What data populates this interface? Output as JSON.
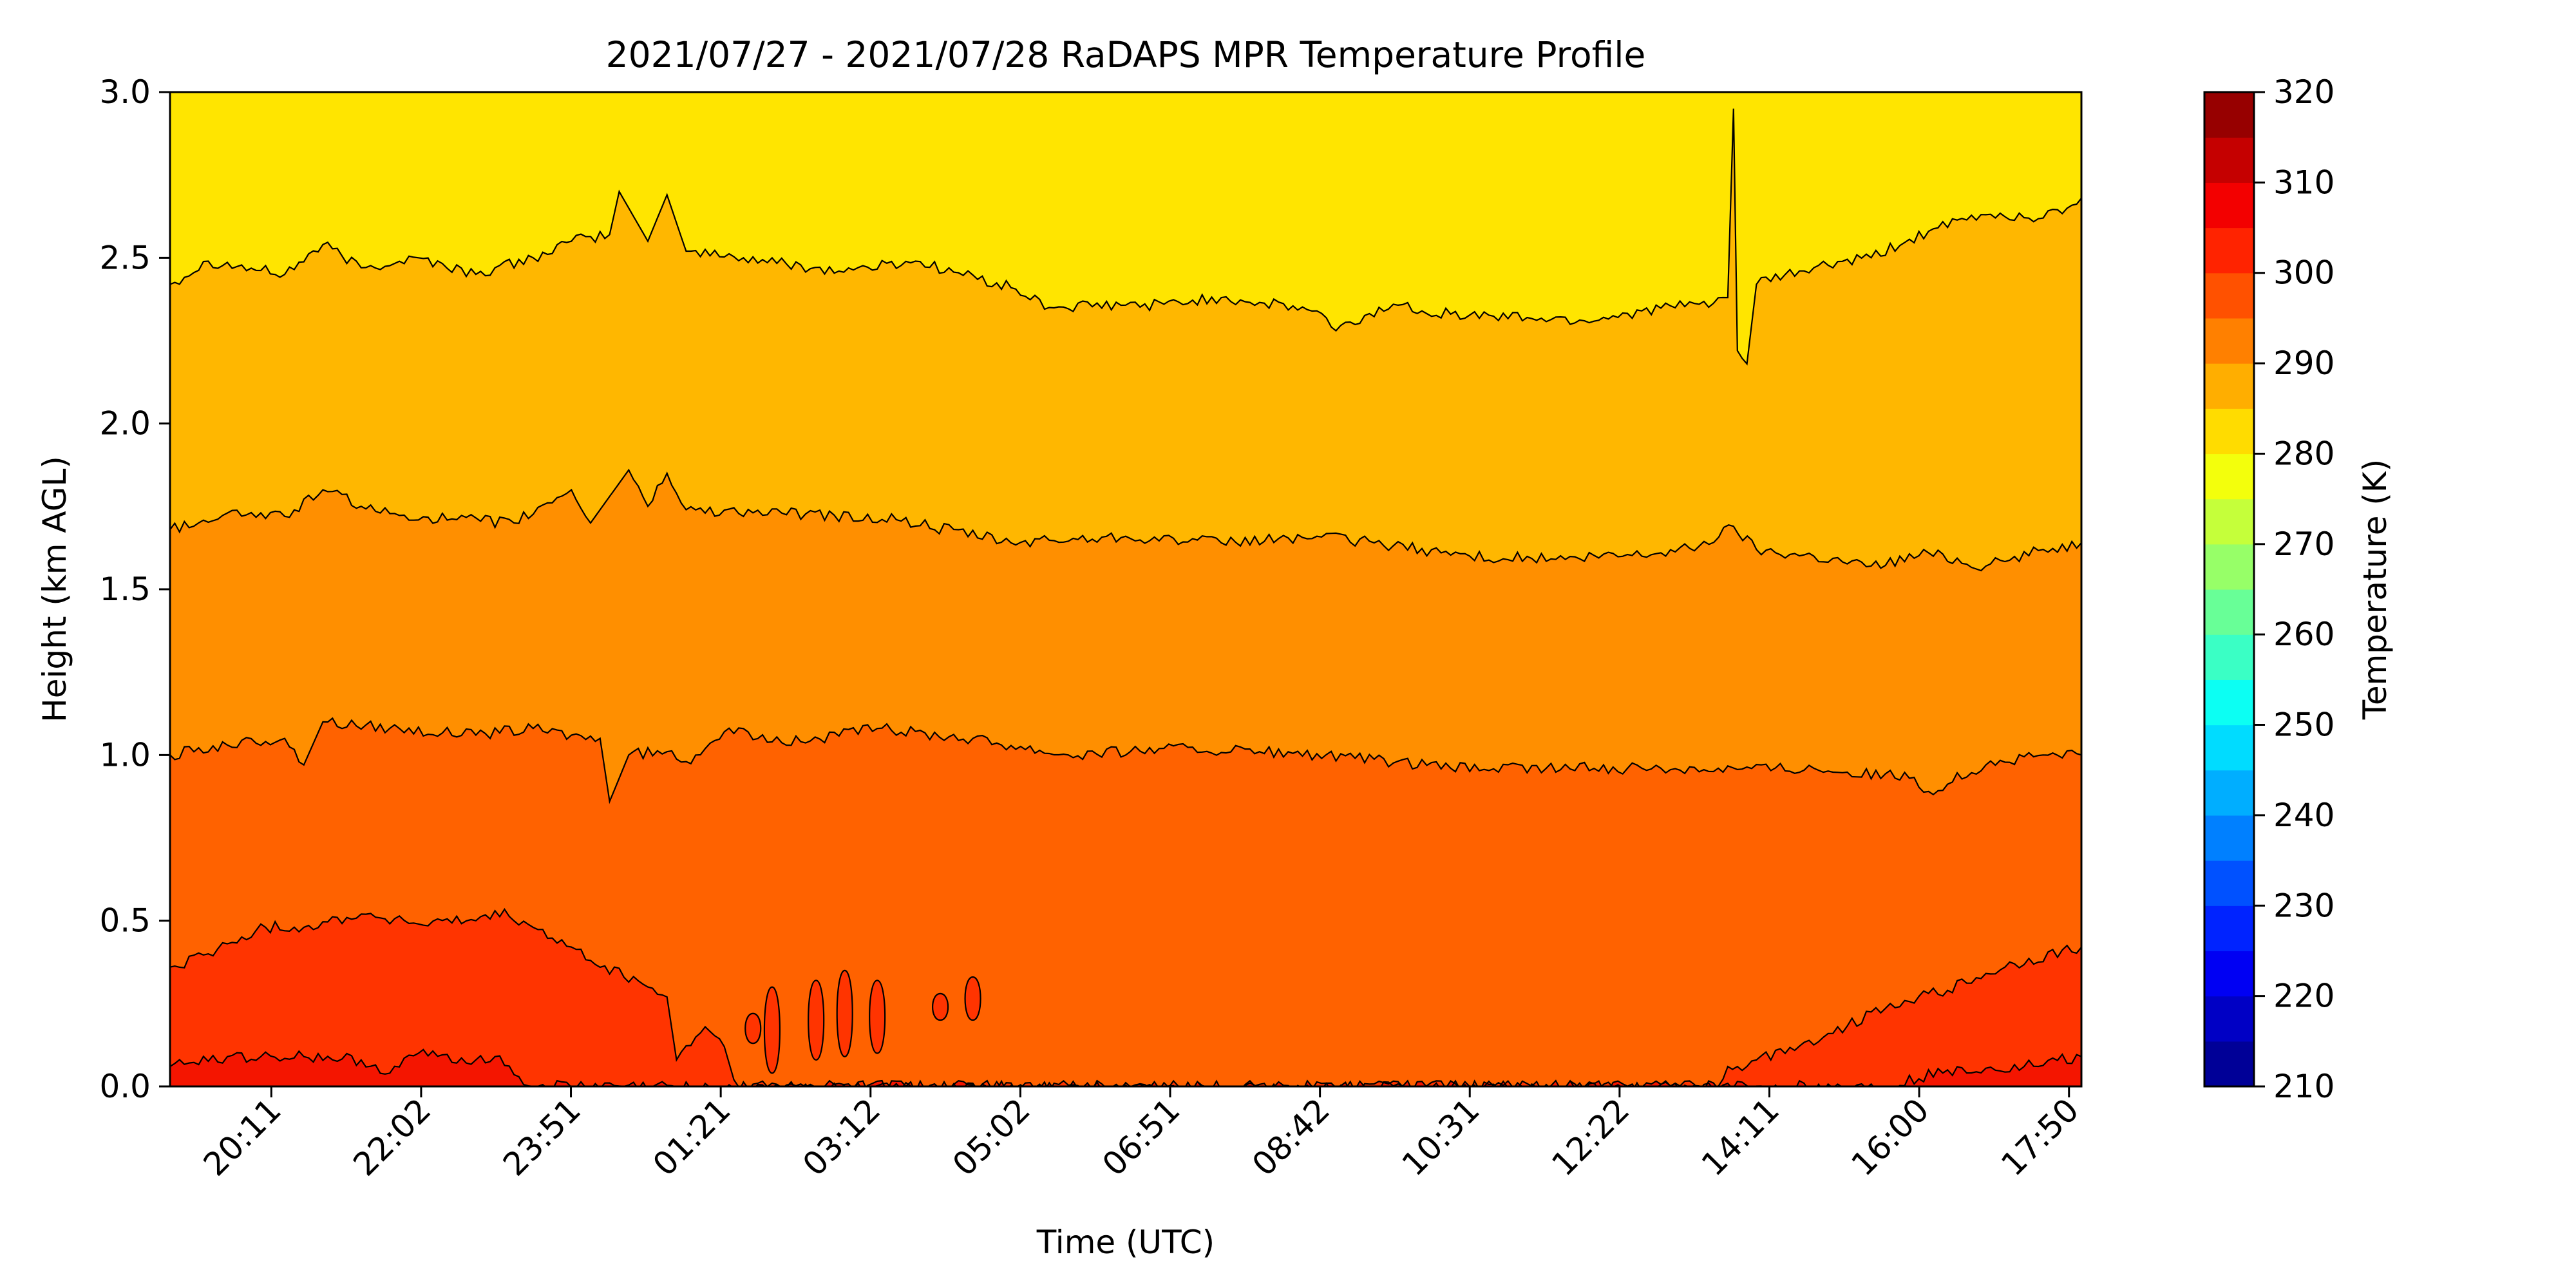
{
  "chart_data": {
    "type": "heatmap",
    "subtype": "filled-contour",
    "title": "2021/07/27 - 2021/07/28 RaDAPS MPR Temperature Profile",
    "xlabel": "Time (UTC)",
    "ylabel": "Height (km AGL)",
    "x_tick_labels": [
      "20:11",
      "22:02",
      "23:51",
      "01:21",
      "03:12",
      "05:02",
      "06:51",
      "08:42",
      "10:31",
      "12:22",
      "14:11",
      "16:00",
      "17:50"
    ],
    "y_ticks": [
      0.0,
      0.5,
      1.0,
      1.5,
      2.0,
      2.5,
      3.0
    ],
    "y_tick_labels": [
      "0.0",
      "0.5",
      "1.0",
      "1.5",
      "2.0",
      "2.5",
      "3.0"
    ],
    "ylim": [
      0,
      3
    ],
    "colorbar": {
      "label": "Temperature (K)",
      "range": [
        210,
        320
      ],
      "step": 5,
      "tick_values": [
        210,
        220,
        230,
        240,
        250,
        260,
        270,
        280,
        290,
        300,
        310,
        320
      ],
      "tick_labels": [
        "210",
        "220",
        "230",
        "240",
        "250",
        "260",
        "270",
        "280",
        "290",
        "300",
        "310",
        "320"
      ],
      "colormap": "jet"
    },
    "contour_bands": [
      {
        "temp_range": [
          305,
          310
        ],
        "color": "#f41500"
      },
      {
        "temp_range": [
          300,
          305
        ],
        "color": "#ff3400"
      },
      {
        "temp_range": [
          295,
          300
        ],
        "color": "#ff6200"
      },
      {
        "temp_range": [
          290,
          295
        ],
        "color": "#ff8f00"
      },
      {
        "temp_range": [
          285,
          290
        ],
        "color": "#ffb700"
      },
      {
        "temp_range": [
          280,
          285
        ],
        "color": "#ffe500"
      }
    ],
    "isotherms": [
      {
        "temperature": 285,
        "height_km": [
          [
            0,
            2.42
          ],
          [
            0.02,
            2.49
          ],
          [
            0.06,
            2.45
          ],
          [
            0.08,
            2.54
          ],
          [
            0.1,
            2.47
          ],
          [
            0.13,
            2.5
          ],
          [
            0.16,
            2.45
          ],
          [
            0.19,
            2.5
          ],
          [
            0.21,
            2.55
          ],
          [
            0.23,
            2.57
          ],
          [
            0.235,
            2.7
          ],
          [
            0.25,
            2.55
          ],
          [
            0.26,
            2.69
          ],
          [
            0.27,
            2.52
          ],
          [
            0.3,
            2.5
          ],
          [
            0.35,
            2.46
          ],
          [
            0.39,
            2.49
          ],
          [
            0.44,
            2.41
          ],
          [
            0.46,
            2.35
          ],
          [
            0.52,
            2.36
          ],
          [
            0.55,
            2.38
          ],
          [
            0.6,
            2.34
          ],
          [
            0.61,
            2.28
          ],
          [
            0.64,
            2.36
          ],
          [
            0.67,
            2.33
          ],
          [
            0.71,
            2.32
          ],
          [
            0.74,
            2.31
          ],
          [
            0.77,
            2.34
          ],
          [
            0.8,
            2.36
          ],
          [
            0.815,
            2.38
          ],
          [
            0.818,
            2.95
          ],
          [
            0.82,
            2.22
          ],
          [
            0.825,
            2.18
          ],
          [
            0.83,
            2.42
          ],
          [
            0.86,
            2.47
          ],
          [
            0.89,
            2.5
          ],
          [
            0.92,
            2.58
          ],
          [
            0.95,
            2.63
          ],
          [
            0.98,
            2.62
          ],
          [
            1.0,
            2.68
          ]
        ]
      },
      {
        "temperature": 290,
        "height_km": [
          [
            0,
            1.68
          ],
          [
            0.03,
            1.73
          ],
          [
            0.06,
            1.72
          ],
          [
            0.08,
            1.8
          ],
          [
            0.11,
            1.73
          ],
          [
            0.15,
            1.71
          ],
          [
            0.18,
            1.7
          ],
          [
            0.21,
            1.8
          ],
          [
            0.22,
            1.7
          ],
          [
            0.24,
            1.86
          ],
          [
            0.25,
            1.75
          ],
          [
            0.26,
            1.85
          ],
          [
            0.27,
            1.74
          ],
          [
            0.32,
            1.73
          ],
          [
            0.38,
            1.71
          ],
          [
            0.44,
            1.64
          ],
          [
            0.5,
            1.66
          ],
          [
            0.55,
            1.64
          ],
          [
            0.6,
            1.66
          ],
          [
            0.63,
            1.64
          ],
          [
            0.68,
            1.6
          ],
          [
            0.73,
            1.59
          ],
          [
            0.78,
            1.61
          ],
          [
            0.8,
            1.63
          ],
          [
            0.818,
            1.69
          ],
          [
            0.83,
            1.62
          ],
          [
            0.86,
            1.6
          ],
          [
            0.89,
            1.57
          ],
          [
            0.92,
            1.61
          ],
          [
            0.95,
            1.57
          ],
          [
            0.98,
            1.62
          ],
          [
            1.0,
            1.64
          ]
        ]
      },
      {
        "temperature": 295,
        "height_km": [
          [
            0,
            1.0
          ],
          [
            0.03,
            1.03
          ],
          [
            0.06,
            1.05
          ],
          [
            0.07,
            0.97
          ],
          [
            0.08,
            1.1
          ],
          [
            0.12,
            1.08
          ],
          [
            0.16,
            1.06
          ],
          [
            0.19,
            1.08
          ],
          [
            0.21,
            1.06
          ],
          [
            0.225,
            1.05
          ],
          [
            0.23,
            0.86
          ],
          [
            0.24,
            1.0
          ],
          [
            0.26,
            1.01
          ],
          [
            0.27,
            0.98
          ],
          [
            0.29,
            1.07
          ],
          [
            0.33,
            1.04
          ],
          [
            0.37,
            1.08
          ],
          [
            0.42,
            1.05
          ],
          [
            0.47,
            1.0
          ],
          [
            0.52,
            1.02
          ],
          [
            0.57,
            1.01
          ],
          [
            0.62,
            0.99
          ],
          [
            0.67,
            0.96
          ],
          [
            0.72,
            0.96
          ],
          [
            0.77,
            0.96
          ],
          [
            0.81,
            0.96
          ],
          [
            0.86,
            0.96
          ],
          [
            0.91,
            0.93
          ],
          [
            0.92,
            0.89
          ],
          [
            0.95,
            0.97
          ],
          [
            0.98,
            1.0
          ],
          [
            1.0,
            1.0
          ]
        ]
      },
      {
        "temperature": 300,
        "height_km": [
          [
            0,
            0.36
          ],
          [
            0.02,
            0.4
          ],
          [
            0.05,
            0.48
          ],
          [
            0.07,
            0.48
          ],
          [
            0.1,
            0.52
          ],
          [
            0.13,
            0.49
          ],
          [
            0.16,
            0.5
          ],
          [
            0.17,
            0.53
          ],
          [
            0.19,
            0.48
          ],
          [
            0.22,
            0.38
          ],
          [
            0.25,
            0.3
          ],
          [
            0.26,
            0.27
          ],
          [
            0.265,
            0.08
          ],
          [
            0.28,
            0.18
          ],
          [
            0.29,
            0.12
          ],
          [
            0.295,
            0.02
          ],
          [
            0.3,
            0.0
          ],
          [
            0.81,
            0.0
          ],
          [
            0.815,
            0.06
          ],
          [
            0.82,
            0.06
          ],
          [
            0.83,
            0.08
          ],
          [
            0.87,
            0.16
          ],
          [
            0.9,
            0.25
          ],
          [
            0.93,
            0.29
          ],
          [
            0.96,
            0.36
          ],
          [
            1.0,
            0.42
          ]
        ]
      },
      {
        "temperature": 305,
        "height_km": [
          [
            0,
            0.06
          ],
          [
            0.03,
            0.09
          ],
          [
            0.07,
            0.09
          ],
          [
            0.1,
            0.08
          ],
          [
            0.115,
            0.04
          ],
          [
            0.13,
            0.1
          ],
          [
            0.16,
            0.08
          ],
          [
            0.17,
            0.09
          ],
          [
            0.19,
            0.0
          ],
          [
            0.9,
            0.0
          ],
          [
            0.93,
            0.05
          ],
          [
            0.97,
            0.06
          ],
          [
            1.0,
            0.09
          ]
        ]
      }
    ]
  }
}
